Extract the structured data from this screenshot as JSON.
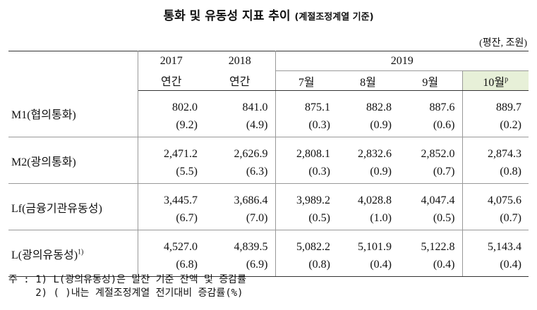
{
  "header": {
    "title": "통화 및 유동성 지표 추이",
    "subtitle": "(계절조정계열 기준)",
    "unit": "(평잔, 조원)"
  },
  "table": {
    "years": [
      "2017",
      "2018",
      "2019"
    ],
    "periods": [
      "연간",
      "연간",
      "7월",
      "8월",
      "9월",
      "10월"
    ],
    "last_period_mark": "p",
    "rows": [
      {
        "label": "M1(협의통화)",
        "values": [
          "802.0",
          "841.0",
          "875.1",
          "882.8",
          "887.6",
          "889.7"
        ],
        "changes": [
          "(9.2)",
          "(4.9)",
          "(0.3)",
          "(0.9)",
          "(0.6)",
          "(0.2)"
        ]
      },
      {
        "label": "M2(광의통화)",
        "values": [
          "2,471.2",
          "2,626.9",
          "2,808.1",
          "2,832.6",
          "2,852.0",
          "2,874.3"
        ],
        "changes": [
          "(5.5)",
          "(6.3)",
          "(0.3)",
          "(0.9)",
          "(0.7)",
          "(0.8)"
        ]
      },
      {
        "label": "Lf(금융기관유동성)",
        "values": [
          "3,445.7",
          "3,686.4",
          "3,989.2",
          "4,028.8",
          "4,047.4",
          "4,075.6"
        ],
        "changes": [
          "(6.7)",
          "(7.0)",
          "(0.5)",
          "(1.0)",
          "(0.5)",
          "(0.7)"
        ]
      },
      {
        "label": "L(광의유동성)",
        "label_mark": "1)",
        "values": [
          "4,527.0",
          "4,839.5",
          "5,082.2",
          "5,101.9",
          "5,122.8",
          "5,143.4"
        ],
        "changes": [
          "(6.8)",
          "(6.9)",
          "(0.8)",
          "(0.4)",
          "(0.4)",
          "(0.4)"
        ]
      }
    ]
  },
  "notes": {
    "prefix": "주 :",
    "items": [
      "1) L(광의유동성)은 말잔 기준 잔액 및 증감률",
      "2) (    )내는 계절조정계열 전기대비 증감률(%)"
    ]
  }
}
